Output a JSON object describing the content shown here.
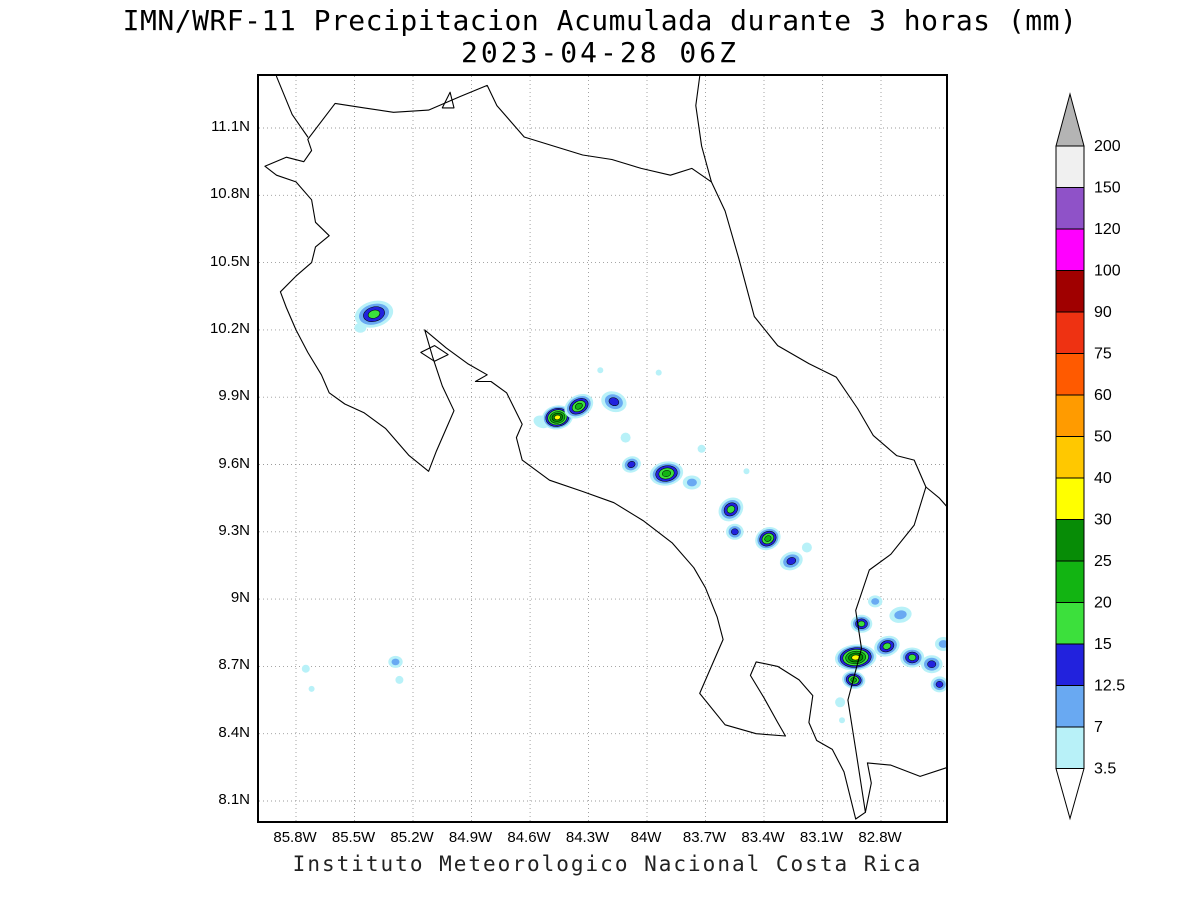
{
  "title": {
    "line1": "IMN/WRF-11 Precipitacion Acumulada durante 3 horas (mm)",
    "line2": "2023-04-28 06Z"
  },
  "caption": "Instituto Meteorologico Nacional Costa Rica",
  "map": {
    "x_ticks": [
      {
        "lon_w": 85.8,
        "label": "85.8W"
      },
      {
        "lon_w": 85.5,
        "label": "85.5W"
      },
      {
        "lon_w": 85.2,
        "label": "85.2W"
      },
      {
        "lon_w": 84.9,
        "label": "84.9W"
      },
      {
        "lon_w": 84.6,
        "label": "84.6W"
      },
      {
        "lon_w": 84.3,
        "label": "84.3W"
      },
      {
        "lon_w": 84.0,
        "label": "84W"
      },
      {
        "lon_w": 83.7,
        "label": "83.7W"
      },
      {
        "lon_w": 83.4,
        "label": "83.4W"
      },
      {
        "lon_w": 83.1,
        "label": "83.1W"
      },
      {
        "lon_w": 82.8,
        "label": "82.8W"
      }
    ],
    "y_ticks": [
      {
        "lat": 11.1,
        "label": "11.1N"
      },
      {
        "lat": 10.8,
        "label": "10.8N"
      },
      {
        "lat": 10.5,
        "label": "10.5N"
      },
      {
        "lat": 10.2,
        "label": "10.2N"
      },
      {
        "lat": 9.9,
        "label": "9.9N"
      },
      {
        "lat": 9.6,
        "label": "9.6N"
      },
      {
        "lat": 9.3,
        "label": "9.3N"
      },
      {
        "lat": 9.0,
        "label": "9N"
      },
      {
        "lat": 8.7,
        "label": "8.7N"
      },
      {
        "lat": 8.4,
        "label": "8.4N"
      },
      {
        "lat": 8.1,
        "label": "8.1N"
      }
    ]
  },
  "colorbar": {
    "labels": [
      "3.5",
      "7",
      "12.5",
      "15",
      "20",
      "25",
      "30",
      "40",
      "50",
      "60",
      "75",
      "90",
      "100",
      "120",
      "150",
      "200"
    ],
    "segment_colors": [
      "#b8f1f8",
      "#69a9f2",
      "#2222dd",
      "#3ce03c",
      "#12b412",
      "#078c06",
      "#ffff00",
      "#ffc800",
      "#ff9b00",
      "#ff5a00",
      "#ee3212",
      "#a00000",
      "#ff00ff",
      "#8f52c8",
      "#f0f0f0"
    ],
    "over_color": "#b4b4b4",
    "under_color": "#ffffff"
  },
  "chart_data": {
    "type": "heatmap",
    "title": "IMN/WRF-11 Precipitacion Acumulada durante 3 horas (mm)",
    "valid_time": "2023-04-28 06Z",
    "units": "mm",
    "region": "Costa Rica",
    "lon_w_range": [
      85.99,
      82.47
    ],
    "lat_range": [
      8.01,
      11.33
    ],
    "levels_mm": [
      3.5,
      7,
      12.5,
      15,
      20,
      25,
      30,
      40,
      50,
      60,
      75,
      90,
      100,
      120,
      150,
      200
    ],
    "level_colors": [
      "#b8f1f8",
      "#69a9f2",
      "#2222dd",
      "#3ce03c",
      "#12b412",
      "#078c06",
      "#ffff00",
      "#ffc800",
      "#ff9b00",
      "#ff5a00",
      "#ee3212",
      "#a00000",
      "#ff00ff",
      "#8f52c8",
      "#f0f0f0"
    ],
    "cells": [
      {
        "lon_w": 85.4,
        "lat": 10.27,
        "peak_mm": 15,
        "r": 13,
        "stretch": 1.5,
        "rot": -15
      },
      {
        "lon_w": 85.47,
        "lat": 10.21,
        "peak_mm": 3.5,
        "r": 5,
        "stretch": 1.2,
        "rot": 0
      },
      {
        "lon_w": 84.54,
        "lat": 9.79,
        "peak_mm": 3.5,
        "r": 6,
        "stretch": 1.4,
        "rot": 20
      },
      {
        "lon_w": 84.46,
        "lat": 9.81,
        "peak_mm": 30,
        "r": 12,
        "stretch": 1.3,
        "rot": -10
      },
      {
        "lon_w": 84.35,
        "lat": 9.86,
        "peak_mm": 20,
        "r": 11,
        "stretch": 1.4,
        "rot": -30
      },
      {
        "lon_w": 84.17,
        "lat": 9.88,
        "peak_mm": 12.5,
        "r": 10,
        "stretch": 1.3,
        "rot": 20
      },
      {
        "lon_w": 84.11,
        "lat": 9.72,
        "peak_mm": 3.5,
        "r": 5,
        "stretch": 1,
        "rot": 0
      },
      {
        "lon_w": 84.08,
        "lat": 9.6,
        "peak_mm": 12.5,
        "r": 8,
        "stretch": 1.2,
        "rot": -20
      },
      {
        "lon_w": 83.9,
        "lat": 9.56,
        "peak_mm": 20,
        "r": 12,
        "stretch": 1.4,
        "rot": -10
      },
      {
        "lon_w": 83.77,
        "lat": 9.52,
        "peak_mm": 7,
        "r": 7,
        "stretch": 1.3,
        "rot": 0
      },
      {
        "lon_w": 83.57,
        "lat": 9.4,
        "peak_mm": 15,
        "r": 11,
        "stretch": 1.2,
        "rot": -40
      },
      {
        "lon_w": 83.55,
        "lat": 9.3,
        "peak_mm": 12.5,
        "r": 8,
        "stretch": 1.1,
        "rot": 0
      },
      {
        "lon_w": 83.38,
        "lat": 9.27,
        "peak_mm": 20,
        "r": 11,
        "stretch": 1.2,
        "rot": -30
      },
      {
        "lon_w": 83.26,
        "lat": 9.17,
        "peak_mm": 12.5,
        "r": 9,
        "stretch": 1.3,
        "rot": -20
      },
      {
        "lon_w": 83.18,
        "lat": 9.23,
        "peak_mm": 3.5,
        "r": 5,
        "stretch": 1,
        "rot": 0
      },
      {
        "lon_w": 83.94,
        "lat": 10.01,
        "peak_mm": 3.5,
        "r": 3,
        "stretch": 1,
        "rot": 0
      },
      {
        "lon_w": 84.24,
        "lat": 10.02,
        "peak_mm": 3.5,
        "r": 3,
        "stretch": 1,
        "rot": 0
      },
      {
        "lon_w": 83.72,
        "lat": 9.67,
        "peak_mm": 3.5,
        "r": 4,
        "stretch": 1,
        "rot": 0
      },
      {
        "lon_w": 83.49,
        "lat": 9.57,
        "peak_mm": 3.5,
        "r": 3,
        "stretch": 1,
        "rot": 0
      },
      {
        "lon_w": 82.9,
        "lat": 8.89,
        "peak_mm": 15,
        "r": 9,
        "stretch": 1.2,
        "rot": 0
      },
      {
        "lon_w": 82.93,
        "lat": 8.74,
        "peak_mm": 30,
        "r": 13,
        "stretch": 1.6,
        "rot": -5
      },
      {
        "lon_w": 82.94,
        "lat": 8.64,
        "peak_mm": 20,
        "r": 9,
        "stretch": 1.3,
        "rot": 10
      },
      {
        "lon_w": 82.77,
        "lat": 8.79,
        "peak_mm": 15,
        "r": 10,
        "stretch": 1.3,
        "rot": -20
      },
      {
        "lon_w": 82.64,
        "lat": 8.74,
        "peak_mm": 15,
        "r": 10,
        "stretch": 1.2,
        "rot": 0
      },
      {
        "lon_w": 82.54,
        "lat": 8.71,
        "peak_mm": 12.5,
        "r": 9,
        "stretch": 1.2,
        "rot": 0
      },
      {
        "lon_w": 82.5,
        "lat": 8.62,
        "peak_mm": 12.5,
        "r": 8,
        "stretch": 1.1,
        "rot": 0
      },
      {
        "lon_w": 82.7,
        "lat": 8.93,
        "peak_mm": 7,
        "r": 8,
        "stretch": 1.4,
        "rot": -10
      },
      {
        "lon_w": 82.83,
        "lat": 8.99,
        "peak_mm": 7,
        "r": 6,
        "stretch": 1.2,
        "rot": 0
      },
      {
        "lon_w": 82.48,
        "lat": 8.8,
        "peak_mm": 7,
        "r": 7,
        "stretch": 1.2,
        "rot": 0
      },
      {
        "lon_w": 85.75,
        "lat": 8.69,
        "peak_mm": 3.5,
        "r": 4,
        "stretch": 1,
        "rot": 0
      },
      {
        "lon_w": 85.72,
        "lat": 8.6,
        "peak_mm": 3.5,
        "r": 3,
        "stretch": 1,
        "rot": 0
      },
      {
        "lon_w": 85.29,
        "lat": 8.72,
        "peak_mm": 7,
        "r": 6,
        "stretch": 1.2,
        "rot": 0
      },
      {
        "lon_w": 85.27,
        "lat": 8.64,
        "peak_mm": 3.5,
        "r": 4,
        "stretch": 1,
        "rot": 0
      },
      {
        "lon_w": 83.01,
        "lat": 8.54,
        "peak_mm": 3.5,
        "r": 5,
        "stretch": 1,
        "rot": 0
      },
      {
        "lon_w": 83.0,
        "lat": 8.46,
        "peak_mm": 3.5,
        "r": 3,
        "stretch": 1,
        "rot": 0
      }
    ]
  }
}
